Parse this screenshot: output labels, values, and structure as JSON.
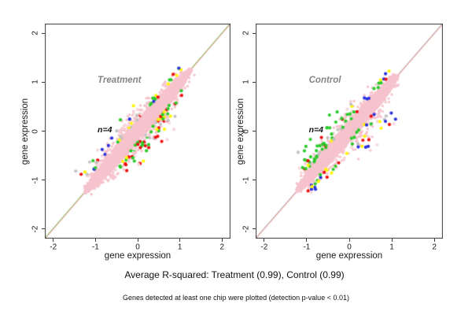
{
  "figure": {
    "background": "#FFFFFF"
  },
  "captions": {
    "line1": "Average R-squared: Treatment (0.99), Control (0.99)",
    "line2": "Genes detected at least one chip were plotted (detection p-value < 0.01)"
  },
  "palette": {
    "pink": "#F6C3CC",
    "lightpink": "#F8D8DD",
    "green": "#2ACB2A",
    "red": "#EE0E0E",
    "yellow": "#FFF500",
    "blue": "#2A33DD",
    "gray": "#C2C2C2",
    "tan": "#C8A164",
    "frame": "#3A3A3A"
  },
  "chart_data": {
    "type": "scatter",
    "xlabel": "gene expression",
    "ylabel": "gene expression",
    "xlim": [
      -2.2,
      2.2
    ],
    "ylim": [
      -2.2,
      2.2
    ],
    "ticks": [
      -2,
      -1,
      0,
      1,
      2
    ],
    "identity_line": true,
    "annotation_anchor": {
      "x": -0.95,
      "label_y": 1.03,
      "n_y": 0.02
    },
    "panels": [
      {
        "label": "Treatment",
        "n_label": "n=4",
        "r_squared": 0.99,
        "seed": 11,
        "line_colors": [
          {
            "color": "#3FC43F",
            "offset": -0.7
          },
          {
            "color": "#C8A164",
            "offset": 0
          },
          {
            "color": "#FFB6C1",
            "offset": 0.7
          }
        ],
        "cloud": {
          "color": "pink",
          "count": 3200,
          "center": 0.0,
          "half_length": 1.27,
          "half_width": 0.16
        },
        "outlier_clusters": [
          {
            "count": 58,
            "t": [
              -0.6,
              0.62
            ],
            "d": [
              0.03,
              0.3
            ],
            "side": -1,
            "colors": [
              {
                "name": "green",
                "w": 0.4
              },
              {
                "name": "red",
                "w": 0.3
              },
              {
                "name": "yellow",
                "w": 0.1
              },
              {
                "name": "gray",
                "w": 0.06
              },
              {
                "name": "blue",
                "w": 0.04
              },
              {
                "name": "lightpink",
                "w": 0.1
              }
            ]
          },
          {
            "count": 14,
            "t": [
              -0.35,
              0.45
            ],
            "d": [
              0.25,
              0.5
            ],
            "side": -1,
            "colors": [
              {
                "name": "red",
                "w": 0.45
              },
              {
                "name": "green",
                "w": 0.2
              },
              {
                "name": "gray",
                "w": 0.1
              },
              {
                "name": "lightpink",
                "w": 0.15
              },
              {
                "name": "yellow",
                "w": 0.1
              }
            ]
          },
          {
            "count": 46,
            "t": [
              -1.15,
              0.3
            ],
            "d": [
              0.03,
              0.33
            ],
            "side": 1,
            "colors": [
              {
                "name": "lightpink",
                "w": 0.3
              },
              {
                "name": "yellow",
                "w": 0.16
              },
              {
                "name": "gray",
                "w": 0.14
              },
              {
                "name": "green",
                "w": 0.16
              },
              {
                "name": "red",
                "w": 0.12
              },
              {
                "name": "blue",
                "w": 0.12
              }
            ]
          },
          {
            "count": 16,
            "t": [
              0.35,
              1.15
            ],
            "d": [
              0.02,
              0.12
            ],
            "side": 1,
            "colors": [
              {
                "name": "green",
                "w": 0.45
              },
              {
                "name": "blue",
                "w": 0.2
              },
              {
                "name": "red",
                "w": 0.15
              },
              {
                "name": "yellow",
                "w": 0.2
              }
            ]
          },
          {
            "count": 12,
            "t": [
              0.3,
              1.1
            ],
            "d": [
              0.02,
              0.12
            ],
            "side": -1,
            "colors": [
              {
                "name": "green",
                "w": 0.5
              },
              {
                "name": "red",
                "w": 0.3
              },
              {
                "name": "yellow",
                "w": 0.2
              }
            ]
          }
        ]
      },
      {
        "label": "Control",
        "n_label": "n=4",
        "r_squared": 0.99,
        "seed": 29,
        "line_colors": [
          {
            "color": "#9FA8DA",
            "offset": -0.7
          },
          {
            "color": "#C8A164",
            "offset": 0
          },
          {
            "color": "#FFB6C1",
            "offset": 0.7
          }
        ],
        "cloud": {
          "color": "pink",
          "count": 3200,
          "center": -0.04,
          "half_length": 1.2,
          "half_width": 0.15
        },
        "outlier_clusters": [
          {
            "count": 55,
            "t": [
              -1.0,
              0.35
            ],
            "d": [
              0.02,
              0.25
            ],
            "side": 1,
            "colors": [
              {
                "name": "green",
                "w": 0.62
              },
              {
                "name": "gray",
                "w": 0.12
              },
              {
                "name": "red",
                "w": 0.1
              },
              {
                "name": "lightpink",
                "w": 0.1
              },
              {
                "name": "yellow",
                "w": 0.06
              }
            ]
          },
          {
            "count": 10,
            "t": [
              -0.9,
              0.1
            ],
            "d": [
              0.25,
              0.45
            ],
            "side": 1,
            "colors": [
              {
                "name": "green",
                "w": 0.5
              },
              {
                "name": "red",
                "w": 0.3
              },
              {
                "name": "gray",
                "w": 0.2
              }
            ]
          },
          {
            "count": 40,
            "t": [
              -1.1,
              0.5
            ],
            "d": [
              0.02,
              0.2
            ],
            "side": -1,
            "colors": [
              {
                "name": "green",
                "w": 0.3
              },
              {
                "name": "yellow",
                "w": 0.2
              },
              {
                "name": "red",
                "w": 0.15
              },
              {
                "name": "blue",
                "w": 0.1
              },
              {
                "name": "lightpink",
                "w": 0.25
              }
            ]
          },
          {
            "count": 22,
            "t": [
              -0.1,
              0.75
            ],
            "d": [
              0.2,
              0.55
            ],
            "side": -1,
            "colors": [
              {
                "name": "blue",
                "w": 0.3
              },
              {
                "name": "lightpink",
                "w": 0.25
              },
              {
                "name": "red",
                "w": 0.15
              },
              {
                "name": "yellow",
                "w": 0.15
              },
              {
                "name": "gray",
                "w": 0.15
              }
            ]
          },
          {
            "count": 12,
            "t": [
              0.5,
              1.1
            ],
            "d": [
              0.02,
              0.15
            ],
            "side": 1,
            "colors": [
              {
                "name": "green",
                "w": 0.3
              },
              {
                "name": "blue",
                "w": 0.25
              },
              {
                "name": "yellow",
                "w": 0.25
              },
              {
                "name": "red",
                "w": 0.2
              }
            ]
          }
        ]
      }
    ]
  }
}
